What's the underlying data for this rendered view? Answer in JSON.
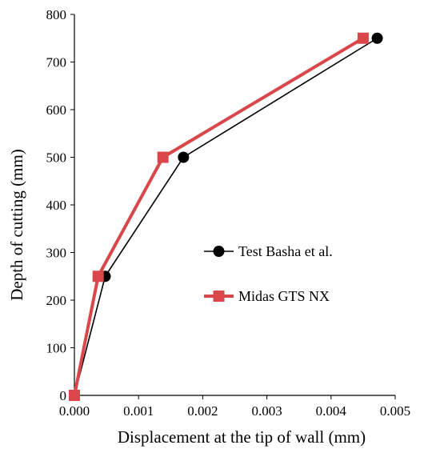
{
  "chart_data": {
    "type": "line",
    "title": "",
    "xlabel": "Displacement at the tip of wall (mm)",
    "ylabel": "Depth of cutting (mm)",
    "xlim": [
      0,
      0.005
    ],
    "ylim": [
      0,
      800
    ],
    "x_ticks": [
      "0.000",
      "0.001",
      "0.002",
      "0.003",
      "0.004",
      "0.005"
    ],
    "y_ticks": [
      "0",
      "100",
      "200",
      "300",
      "400",
      "500",
      "600",
      "700",
      "800"
    ],
    "grid": false,
    "legend_position": "right-middle",
    "series": [
      {
        "name": "Test Basha et al.",
        "color": "#000000",
        "marker": "circle",
        "x": [
          0,
          0.00048,
          0.0017,
          0.00472
        ],
        "y": [
          0,
          250,
          500,
          750
        ]
      },
      {
        "name": "Midas GTS NX",
        "color": "#d9474a",
        "marker": "square",
        "x": [
          0,
          0.00037,
          0.00138,
          0.0045
        ],
        "y": [
          0,
          250,
          500,
          750
        ]
      }
    ]
  }
}
